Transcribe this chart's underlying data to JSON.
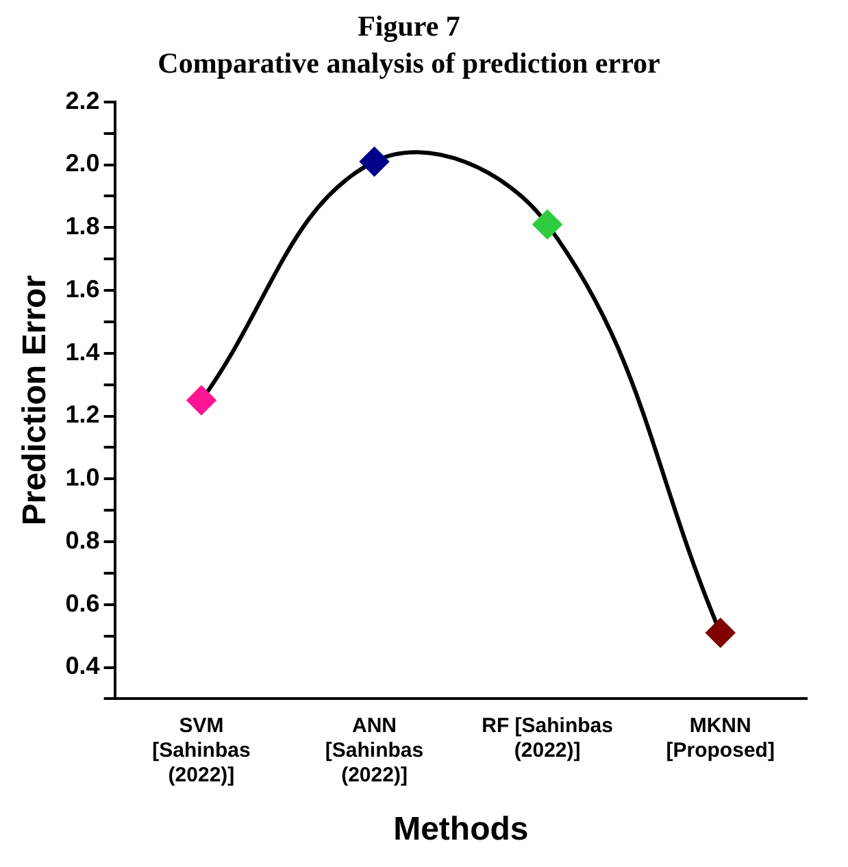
{
  "chart_data": {
    "type": "line",
    "title": "Figure 7",
    "subtitle": "Comparative analysis of prediction error",
    "xlabel": "Methods",
    "ylabel": "Prediction Error",
    "categories": [
      "SVM\n[Sahinbas\n(2022)]",
      "ANN\n[Sahinbas\n(2022)]",
      "RF [Sahinbas\n(2022)]",
      "MKNN\n[Proposed]"
    ],
    "series": [
      {
        "color": "#000000",
        "colors": [
          "#ff1493",
          "#00008b",
          "#2ecc40",
          "#800000"
        ],
        "values": [
          1.25,
          2.01,
          1.81,
          0.51
        ]
      }
    ],
    "ylim": [
      0.3,
      2.2
    ],
    "yticks": [
      {
        "value": 0.3,
        "label": null
      },
      0.4,
      {
        "value": 0.5,
        "label": null
      },
      0.6,
      {
        "value": 0.7,
        "label": null
      },
      0.8,
      {
        "value": 0.9,
        "label": null
      },
      {
        "value": 1,
        "label": "1.0"
      },
      {
        "value": 1.1,
        "label": null
      },
      1.2,
      {
        "value": 1.3,
        "label": null
      },
      1.4,
      {
        "value": 1.5,
        "label": null
      },
      1.6,
      {
        "value": 1.7,
        "label": null
      },
      1.8,
      {
        "value": 1.9,
        "label": null
      },
      {
        "value": 2,
        "label": "2.0"
      },
      {
        "value": 2.1,
        "label": null
      },
      2.2
    ],
    "grid": false,
    "legend": false,
    "marker": "diamond",
    "line_style": "solid"
  }
}
